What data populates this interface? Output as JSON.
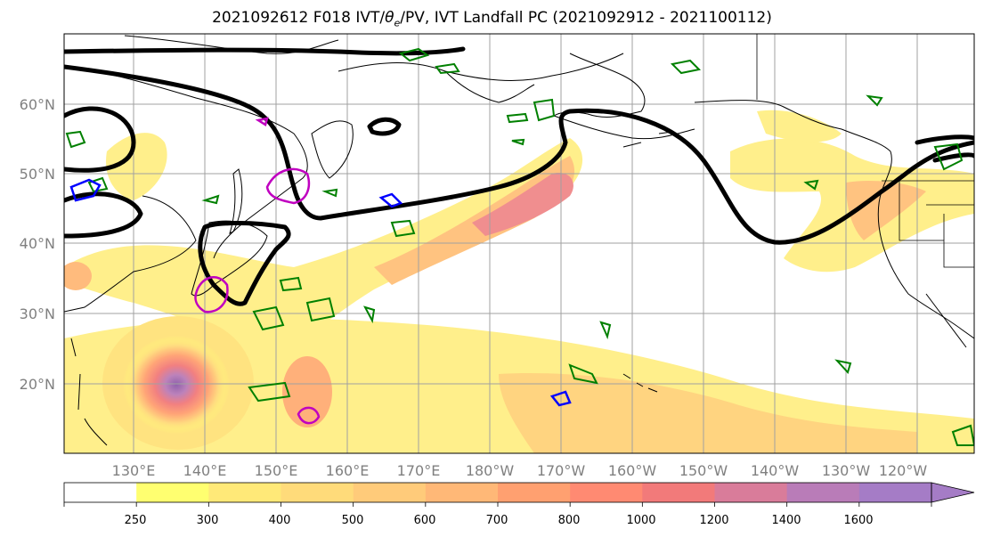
{
  "title": {
    "date": "2021092612",
    "forecast": "F018",
    "fields_prefix": "IVT/",
    "theta": "θ",
    "theta_sub": "e",
    "fields_suffix": "/PV, IVT Landfall PC (2021092912 - 2021100112)"
  },
  "map": {
    "lat_labels": [
      "60°N",
      "50°N",
      "40°N",
      "30°N",
      "20°N"
    ],
    "lon_labels": [
      "130°E",
      "140°E",
      "150°E",
      "160°E",
      "170°E",
      "180°W",
      "170°W",
      "160°W",
      "150°W",
      "140°W",
      "130°W",
      "120°W"
    ],
    "colors": {
      "pv_contour": "#000000",
      "theta_e_positive": "#008000",
      "theta_e_negative": "#0000ff",
      "ivt_anomaly": "#c000c0",
      "coastline": "#000000",
      "grid": "#a0a0a0"
    }
  },
  "colorbar": {
    "levels": [
      "250",
      "300",
      "400",
      "500",
      "600",
      "700",
      "800",
      "1000",
      "1200",
      "1400",
      "1600"
    ],
    "colors": [
      "#ffffff",
      "#ffff70",
      "#ffe978",
      "#ffdb7a",
      "#ffcb7a",
      "#ffb877",
      "#ffa070",
      "#ff8a72",
      "#f27a7a",
      "#d97c9a",
      "#b97cb8",
      "#a57cc6"
    ],
    "extend": "max"
  }
}
